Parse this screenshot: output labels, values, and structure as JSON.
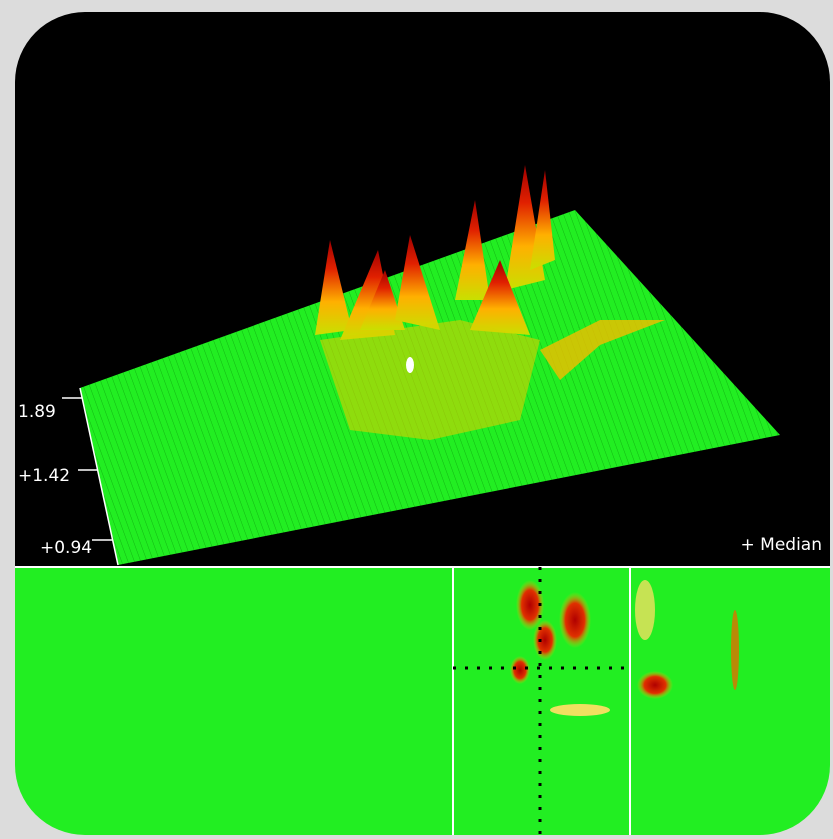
{
  "axis_labels": [
    "1.89",
    "+1.42",
    "+0.94"
  ],
  "legend": "+ Median"
}
